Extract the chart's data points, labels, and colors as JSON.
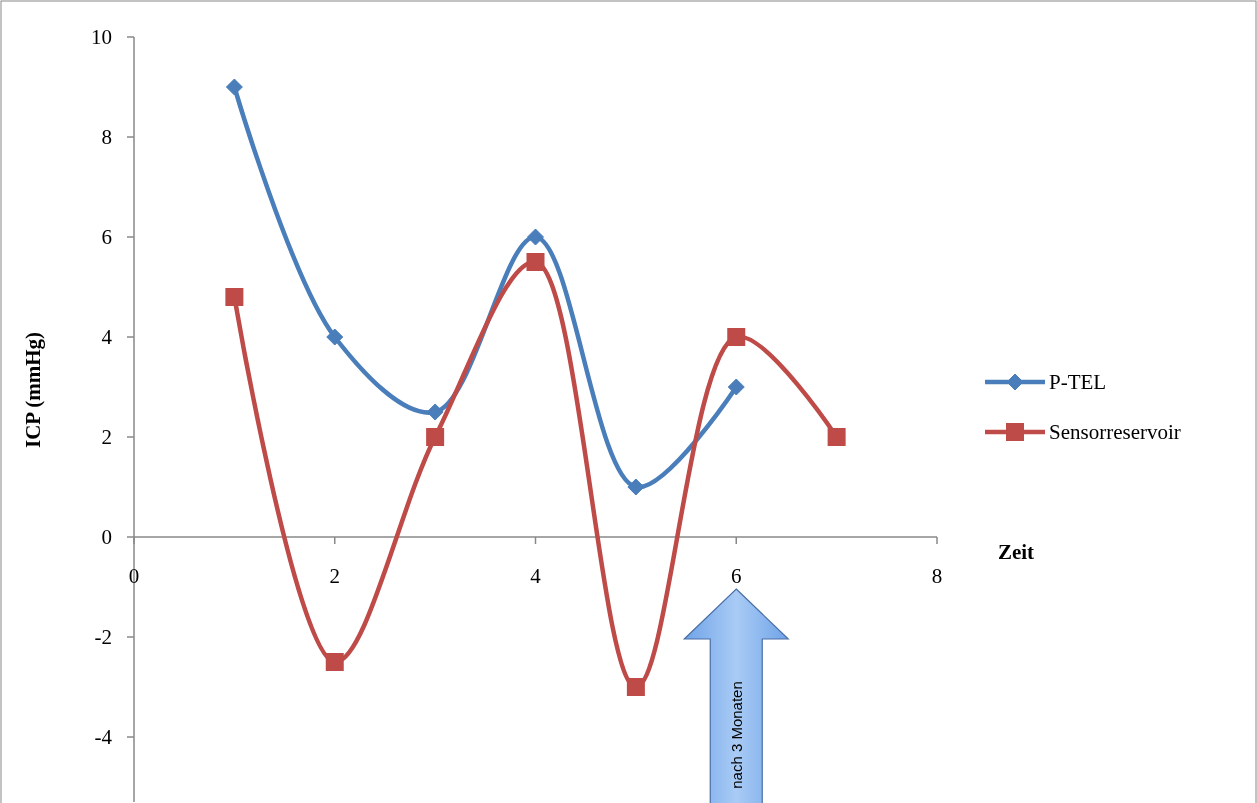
{
  "chart_data": {
    "type": "line",
    "xlabel": "Zeit",
    "ylabel": "ICP (mmHg)",
    "xlim": [
      0,
      8
    ],
    "xticks": [
      0,
      2,
      4,
      6,
      8
    ],
    "ylim": [
      -5.3,
      10
    ],
    "yticks": [
      -4,
      -2,
      0,
      2,
      4,
      6,
      8,
      10
    ],
    "grid": false,
    "legend": "right",
    "line_style": "solid",
    "series": [
      {
        "name": "P-TEL",
        "color": "#4a7ebb",
        "marker": "diamond",
        "x": [
          1,
          2,
          3,
          4,
          5,
          6
        ],
        "values": [
          9,
          4,
          2.5,
          6,
          1,
          3
        ]
      },
      {
        "name": "Sensorreservoir",
        "color": "#be4b48",
        "marker": "square",
        "x": [
          1,
          2,
          3,
          4,
          5,
          6,
          7
        ],
        "values": [
          4.8,
          -2.5,
          2,
          5.5,
          -3,
          4,
          2
        ]
      }
    ],
    "annotations": [
      "nach 3 Monaten"
    ]
  }
}
